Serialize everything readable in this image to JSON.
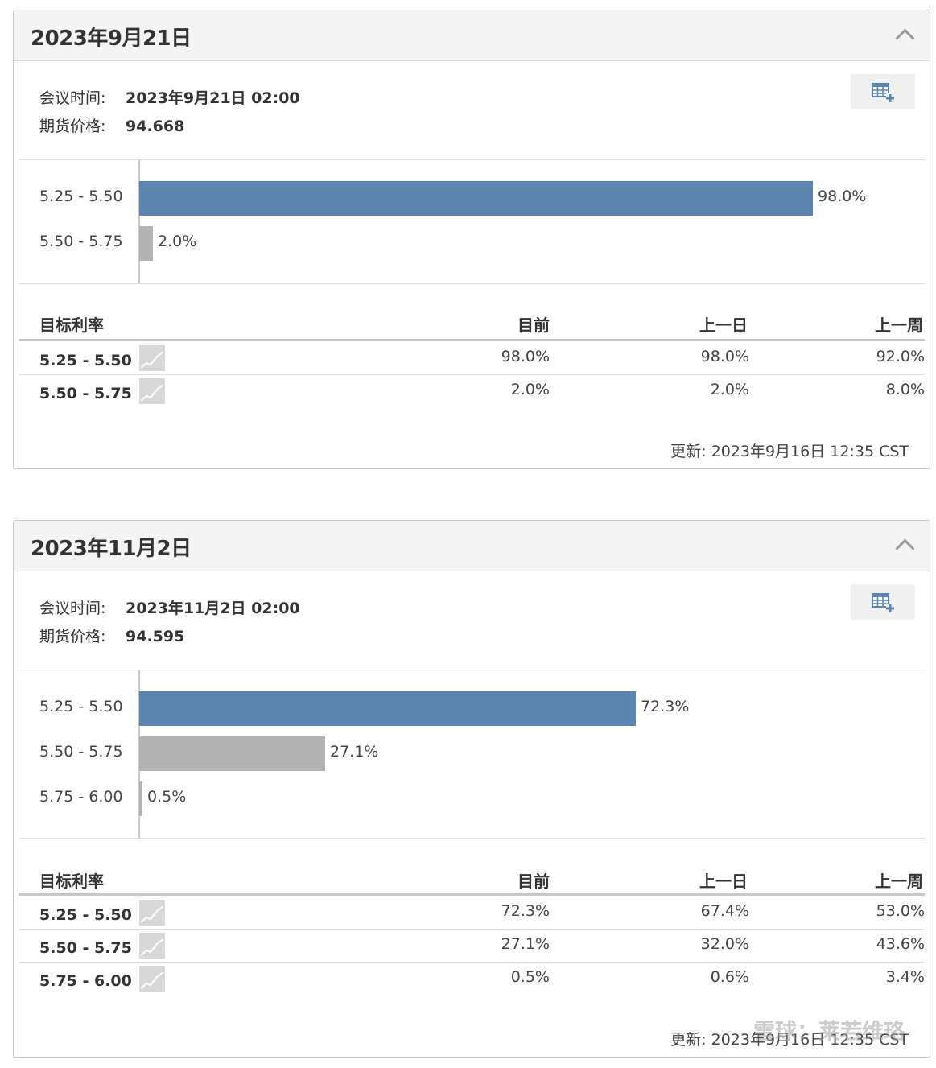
{
  "panels": [
    {
      "title": "2023年9月21日",
      "meeting_time_label": "会议时间:",
      "meeting_time": "2023年9月21日 02:00",
      "futures_price_label": "期货价格:",
      "futures_price": "94.668",
      "bars": [
        {
          "label": "5.25 - 5.50",
          "value": 98.0,
          "value_text": "98.0%",
          "color": "#5b84b1"
        },
        {
          "label": "5.50 - 5.75",
          "value": 2.0,
          "value_text": "2.0%",
          "color": "#b3b3b3"
        }
      ],
      "table": {
        "headers": [
          "目标利率",
          "目前",
          "上一日",
          "上一周"
        ],
        "rows": [
          {
            "rate": "5.25 - 5.50",
            "current": "98.0%",
            "prev_day": "98.0%",
            "prev_week": "92.0%"
          },
          {
            "rate": "5.50 - 5.75",
            "current": "2.0%",
            "prev_day": "2.0%",
            "prev_week": "8.0%"
          }
        ]
      },
      "updated": "更新: 2023年9月16日 12:35 CST"
    },
    {
      "title": "2023年11月2日",
      "meeting_time_label": "会议时间:",
      "meeting_time": "2023年11月2日 02:00",
      "futures_price_label": "期货价格:",
      "futures_price": "94.595",
      "bars": [
        {
          "label": "5.25 - 5.50",
          "value": 72.3,
          "value_text": "72.3%",
          "color": "#5b84b1"
        },
        {
          "label": "5.50 - 5.75",
          "value": 27.1,
          "value_text": "27.1%",
          "color": "#b3b3b3"
        },
        {
          "label": "5.75 - 6.00",
          "value": 0.5,
          "value_text": "0.5%",
          "color": "#b3b3b3"
        }
      ],
      "table": {
        "headers": [
          "目标利率",
          "目前",
          "上一日",
          "上一周"
        ],
        "rows": [
          {
            "rate": "5.25 - 5.50",
            "current": "72.3%",
            "prev_day": "67.4%",
            "prev_week": "53.0%"
          },
          {
            "rate": "5.50 - 5.75",
            "current": "27.1%",
            "prev_day": "32.0%",
            "prev_week": "43.6%"
          },
          {
            "rate": "5.75 - 6.00",
            "current": "0.5%",
            "prev_day": "0.6%",
            "prev_week": "3.4%"
          }
        ]
      },
      "updated": "更新: 2023年9月16日 12:35 CST"
    }
  ],
  "icons": {
    "collapse": "chevron-up-icon",
    "add_calendar": "table-add-icon",
    "trend": "sparkline-icon"
  },
  "watermark": "雪球：莱若维珞"
}
